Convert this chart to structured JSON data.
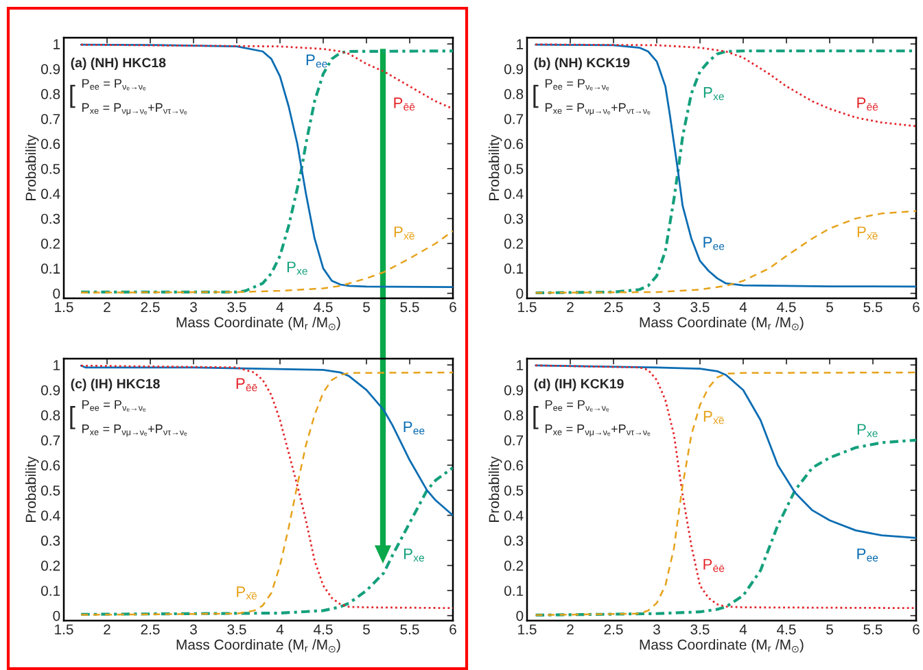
{
  "chart_data": [
    {
      "type": "line",
      "xlabel": "Mass Coordinate (M$_{r}$ /M$_{⊙}$)",
      "ylabel": "Probability",
      "xlim": [
        1.5,
        6
      ],
      "ylim": [
        -0.02,
        1.025
      ],
      "xticks": [
        1.5,
        2,
        2.5,
        3,
        3.5,
        4,
        4.5,
        5,
        5.5,
        6
      ],
      "yticks": [
        0,
        0.1,
        0.2,
        0.3,
        0.4,
        0.5,
        0.6,
        0.7,
        0.8,
        0.9,
        1
      ],
      "grid": false,
      "series": [
        {
          "name": "P$_{ee}$",
          "color": "#0b6db3",
          "line_style": "solid",
          "x": [
            1.7,
            2.5,
            3.5,
            3.8,
            3.9,
            4.0,
            4.1,
            4.2,
            4.25,
            4.3,
            4.4,
            4.5,
            4.6,
            4.7,
            4.8,
            5.0,
            6.0
          ],
          "values": [
            0.997,
            0.996,
            0.99,
            0.97,
            0.94,
            0.87,
            0.75,
            0.6,
            0.5,
            0.4,
            0.22,
            0.1,
            0.05,
            0.035,
            0.03,
            0.027,
            0.025
          ]
        },
        {
          "name": "P$_{xe}$",
          "color": "#14a07c",
          "line_style": "dashdot",
          "x": [
            1.7,
            3.5,
            3.6,
            3.8,
            3.9,
            4.0,
            4.1,
            4.2,
            4.25,
            4.3,
            4.4,
            4.5,
            4.6,
            4.7,
            4.8,
            6.0
          ],
          "values": [
            0.005,
            0.005,
            0.01,
            0.04,
            0.08,
            0.15,
            0.27,
            0.42,
            0.5,
            0.6,
            0.77,
            0.88,
            0.94,
            0.965,
            0.97,
            0.972
          ]
        },
        {
          "name": "P$_{ēē}$",
          "color": "#e4262b",
          "line_style": "dotted",
          "x": [
            1.7,
            4.0,
            4.5,
            4.7,
            4.8,
            5.0,
            5.2,
            5.5,
            5.8,
            6.0
          ],
          "values": [
            0.997,
            0.99,
            0.98,
            0.97,
            0.96,
            0.92,
            0.89,
            0.83,
            0.77,
            0.74
          ]
        },
        {
          "name": "P$_{x̄ē}$",
          "color": "#e6a21a",
          "line_style": "dashed",
          "x": [
            1.7,
            3.5,
            4.0,
            4.5,
            4.7,
            4.8,
            5.0,
            5.2,
            5.5,
            5.8,
            6.0
          ],
          "values": [
            0.003,
            0.005,
            0.01,
            0.02,
            0.03,
            0.04,
            0.06,
            0.085,
            0.14,
            0.2,
            0.25
          ]
        }
      ],
      "annotations": [
        "(a) (NH) HKC18",
        "[",
        "P$_{ee}$ = P$_{νₑ→νₑ}$",
        "P$_{xe}$ = P$_{νμ→νₑ}$+P$_{ντ→νₑ}$"
      ]
    },
    {
      "type": "line",
      "xlabel": "Mass Coordinate (M$_{r}$ /M$_{⊙}$)",
      "ylabel": "Probability",
      "xlim": [
        1.5,
        6
      ],
      "ylim": [
        -0.02,
        1.025
      ],
      "xticks": [
        1.5,
        2,
        2.5,
        3,
        3.5,
        4,
        4.5,
        5,
        5.5,
        6
      ],
      "yticks": [
        0,
        0.1,
        0.2,
        0.3,
        0.4,
        0.5,
        0.6,
        0.7,
        0.8,
        0.9,
        1
      ],
      "grid": false,
      "series": [
        {
          "name": "P$_{ee}$",
          "color": "#0b6db3",
          "line_style": "solid",
          "x": [
            1.6,
            2.5,
            2.8,
            2.9,
            3.0,
            3.1,
            3.15,
            3.2,
            3.25,
            3.3,
            3.4,
            3.5,
            3.6,
            3.7,
            3.8,
            4.0,
            5.0,
            6.0
          ],
          "values": [
            0.997,
            0.995,
            0.985,
            0.97,
            0.93,
            0.83,
            0.72,
            0.6,
            0.48,
            0.35,
            0.22,
            0.13,
            0.09,
            0.06,
            0.04,
            0.032,
            0.028,
            0.027
          ]
        },
        {
          "name": "P$_{xe}$",
          "color": "#14a07c",
          "line_style": "dashdot",
          "x": [
            1.6,
            2.5,
            2.8,
            2.9,
            3.0,
            3.1,
            3.2,
            3.25,
            3.3,
            3.4,
            3.5,
            3.6,
            3.7,
            3.8,
            4.0,
            6.0
          ],
          "values": [
            0.002,
            0.005,
            0.015,
            0.03,
            0.07,
            0.17,
            0.38,
            0.5,
            0.63,
            0.8,
            0.89,
            0.93,
            0.96,
            0.97,
            0.972,
            0.972
          ]
        },
        {
          "name": "P$_{ēē}$",
          "color": "#e4262b",
          "line_style": "dotted",
          "x": [
            1.6,
            3.0,
            3.5,
            3.8,
            4.0,
            4.3,
            4.5,
            4.8,
            5.0,
            5.3,
            5.6,
            6.0
          ],
          "values": [
            0.998,
            0.995,
            0.985,
            0.97,
            0.945,
            0.88,
            0.83,
            0.77,
            0.74,
            0.705,
            0.685,
            0.67
          ]
        },
        {
          "name": "P$_{x̄ē}$",
          "color": "#e6a21a",
          "line_style": "dashed",
          "x": [
            1.6,
            3.0,
            3.5,
            3.8,
            4.0,
            4.3,
            4.5,
            4.8,
            5.0,
            5.3,
            5.6,
            6.0
          ],
          "values": [
            0.002,
            0.005,
            0.015,
            0.03,
            0.05,
            0.1,
            0.15,
            0.22,
            0.26,
            0.3,
            0.32,
            0.33
          ]
        }
      ],
      "annotations": [
        "(b) (NH) KCK19",
        "[",
        "P$_{ee}$ = P$_{νₑ→νₑ}$",
        "P$_{xe}$ = P$_{νμ→νₑ}$+P$_{ντ→νₑ}$"
      ]
    },
    {
      "type": "line",
      "xlabel": "Mass Coordinate (M$_{r}$ /M$_{⊙}$)",
      "ylabel": "Probability",
      "xlim": [
        1.5,
        6
      ],
      "ylim": [
        -0.02,
        1.025
      ],
      "xticks": [
        1.5,
        2,
        2.5,
        3,
        3.5,
        4,
        4.5,
        5,
        5.5,
        6
      ],
      "yticks": [
        0,
        0.1,
        0.2,
        0.3,
        0.4,
        0.5,
        0.6,
        0.7,
        0.8,
        0.9,
        1
      ],
      "grid": false,
      "series": [
        {
          "name": "P$_{ee}$",
          "color": "#0b6db3",
          "line_style": "solid",
          "x": [
            1.7,
            1.75,
            3.0,
            4.5,
            4.7,
            4.8,
            5.0,
            5.2,
            5.3,
            5.5,
            5.7,
            5.8,
            6.0
          ],
          "values": [
            0.997,
            0.99,
            0.99,
            0.98,
            0.97,
            0.955,
            0.9,
            0.82,
            0.76,
            0.62,
            0.5,
            0.46,
            0.4
          ]
        },
        {
          "name": "P$_{xe}$",
          "color": "#14a07c",
          "line_style": "dashdot",
          "x": [
            1.7,
            4.0,
            4.5,
            4.7,
            4.8,
            5.0,
            5.2,
            5.3,
            5.5,
            5.7,
            5.8,
            6.0
          ],
          "values": [
            0.005,
            0.01,
            0.02,
            0.035,
            0.05,
            0.1,
            0.17,
            0.24,
            0.37,
            0.5,
            0.54,
            0.59
          ]
        },
        {
          "name": "P$_{ēē}$",
          "color": "#e4262b",
          "line_style": "dotted",
          "x": [
            1.7,
            3.5,
            3.7,
            3.8,
            3.9,
            4.0,
            4.1,
            4.2,
            4.3,
            4.4,
            4.5,
            4.6,
            4.7,
            4.8,
            5.0,
            6.0
          ],
          "values": [
            0.997,
            0.99,
            0.97,
            0.94,
            0.88,
            0.78,
            0.65,
            0.52,
            0.38,
            0.22,
            0.12,
            0.07,
            0.045,
            0.035,
            0.033,
            0.03
          ]
        },
        {
          "name": "P$_{x̄ē}$",
          "color": "#e6a21a",
          "line_style": "dashed",
          "x": [
            1.7,
            3.5,
            3.7,
            3.8,
            3.9,
            4.0,
            4.1,
            4.2,
            4.3,
            4.4,
            4.5,
            4.6,
            4.7,
            4.8,
            6.0
          ],
          "values": [
            0.003,
            0.008,
            0.02,
            0.04,
            0.09,
            0.2,
            0.35,
            0.52,
            0.68,
            0.8,
            0.89,
            0.94,
            0.96,
            0.968,
            0.97
          ]
        }
      ],
      "annotations": [
        "(c) (IH) HKC18",
        "[",
        "P$_{ee}$ = P$_{νₑ→νₑ}$",
        "P$_{xe}$ = P$_{νμ→νₑ}$+P$_{ντ→νₑ}$"
      ]
    },
    {
      "type": "line",
      "xlabel": "Mass Coordinate (M$_{r}$ /M$_{⊙}$)",
      "ylabel": "Probability",
      "xlim": [
        1.5,
        6
      ],
      "ylim": [
        -0.02,
        1.025
      ],
      "xticks": [
        1.5,
        2,
        2.5,
        3,
        3.5,
        4,
        4.5,
        5,
        5.5,
        6
      ],
      "yticks": [
        0,
        0.1,
        0.2,
        0.3,
        0.4,
        0.5,
        0.6,
        0.7,
        0.8,
        0.9,
        1
      ],
      "grid": false,
      "series": [
        {
          "name": "P$_{ee}$",
          "color": "#0b6db3",
          "line_style": "solid",
          "x": [
            1.6,
            3.0,
            3.5,
            3.7,
            3.8,
            4.0,
            4.2,
            4.4,
            4.6,
            4.8,
            5.0,
            5.3,
            5.6,
            6.0
          ],
          "values": [
            0.998,
            0.99,
            0.985,
            0.975,
            0.96,
            0.9,
            0.78,
            0.6,
            0.49,
            0.42,
            0.38,
            0.34,
            0.32,
            0.31
          ]
        },
        {
          "name": "P$_{xe}$",
          "color": "#14a07c",
          "line_style": "dashdot",
          "x": [
            1.6,
            3.0,
            3.5,
            3.7,
            3.8,
            4.0,
            4.2,
            4.4,
            4.6,
            4.8,
            5.0,
            5.3,
            5.6,
            6.0
          ],
          "values": [
            0.002,
            0.008,
            0.015,
            0.025,
            0.035,
            0.08,
            0.18,
            0.36,
            0.5,
            0.59,
            0.63,
            0.67,
            0.69,
            0.7
          ]
        },
        {
          "name": "P$_{ēē}$",
          "color": "#e4262b",
          "line_style": "dotted",
          "x": [
            1.6,
            2.8,
            2.9,
            3.0,
            3.1,
            3.2,
            3.25,
            3.3,
            3.4,
            3.5,
            3.6,
            3.7,
            3.8,
            4.0,
            6.0
          ],
          "values": [
            0.998,
            0.99,
            0.98,
            0.94,
            0.86,
            0.72,
            0.6,
            0.48,
            0.28,
            0.12,
            0.07,
            0.045,
            0.036,
            0.033,
            0.03
          ]
        },
        {
          "name": "P$_{x̄ē}$",
          "color": "#e6a21a",
          "line_style": "dashed",
          "x": [
            1.6,
            2.8,
            2.9,
            3.0,
            3.1,
            3.2,
            3.25,
            3.3,
            3.4,
            3.5,
            3.6,
            3.7,
            3.8,
            4.0,
            6.0
          ],
          "values": [
            0.002,
            0.008,
            0.02,
            0.05,
            0.12,
            0.27,
            0.4,
            0.52,
            0.72,
            0.84,
            0.91,
            0.95,
            0.965,
            0.968,
            0.97
          ]
        }
      ],
      "annotations": [
        "(d) (IH) KCK19",
        "[",
        "P$_{ee}$ = P$_{νₑ→νₑ}$",
        "P$_{xe}$ = P$_{νμ→νₑ}$+P$_{ντ→νₑ}$"
      ]
    }
  ]
}
